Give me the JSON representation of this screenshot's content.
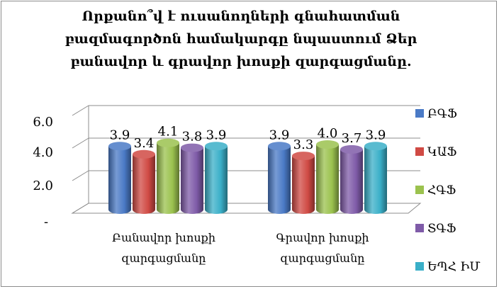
{
  "chart_data": {
    "type": "bar",
    "title_lines": [
      "Որքանո՞վ է ուսանողների գնահատման",
      "բազմագործոն համակարգը նպաստում Ձեր",
      "բանավոր և գրավոր խոսքի զարգացմանը."
    ],
    "categories": [
      [
        "Բանավոր խոսքի",
        "զարգացմանը"
      ],
      [
        "Գրավոր խոսքի",
        "զարգացմանը"
      ]
    ],
    "series": [
      {
        "name": "ԲԳՖ",
        "values": [
          3.9,
          3.9
        ],
        "color": "#4a7ac6"
      },
      {
        "name": "ԿԱՖ",
        "values": [
          3.4,
          3.3
        ],
        "color": "#d04a44"
      },
      {
        "name": "ՀԳՖ",
        "values": [
          4.1,
          4.0
        ],
        "color": "#9bc24e"
      },
      {
        "name": "ՏԳՖ",
        "values": [
          3.8,
          3.7
        ],
        "color": "#7f5ba8"
      },
      {
        "name": "ԵՊՀ ԻՄ",
        "values": [
          3.9,
          3.9
        ],
        "color": "#3aafc8"
      }
    ],
    "data_labels": [
      [
        "3.9",
        "3.9"
      ],
      [
        "3.4",
        "3.3"
      ],
      [
        "4.1",
        "4.0"
      ],
      [
        "3.8",
        "3.7"
      ],
      [
        "3.9",
        "3.9"
      ]
    ],
    "y_ticks": [
      "-",
      "2.0",
      "4.0",
      "6.0"
    ],
    "ylim": [
      0,
      6
    ],
    "grid": true,
    "legend_position": "right"
  }
}
